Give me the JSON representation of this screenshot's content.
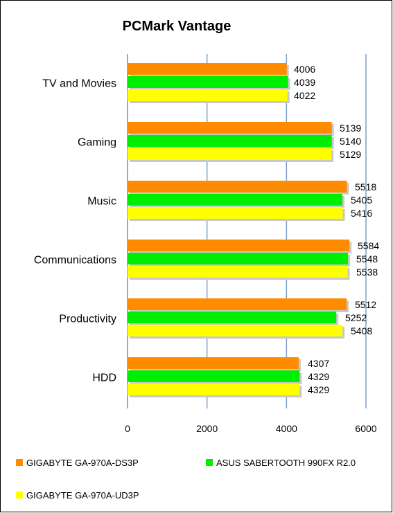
{
  "chart_data": {
    "type": "bar",
    "orientation": "horizontal",
    "title": "PCMark Vantage",
    "categories": [
      "TV and Movies",
      "Gaming",
      "Music",
      "Communications",
      "Productivity",
      "HDD"
    ],
    "series": [
      {
        "name": "GIGABYTE GA-970A-DS3P",
        "color": "#FF8C00",
        "values": [
          4006,
          5139,
          5518,
          5584,
          5512,
          4307
        ]
      },
      {
        "name": "ASUS SABERTOOTH 990FX R2.0",
        "color": "#00EE00",
        "values": [
          4039,
          5140,
          5405,
          5548,
          5252,
          4329
        ]
      },
      {
        "name": "GIGABYTE GA-970A-UD3P",
        "color": "#FFFF00",
        "values": [
          4022,
          5129,
          5416,
          5538,
          5408,
          4329
        ]
      }
    ],
    "xlim": [
      0,
      6000
    ],
    "xticks": [
      "0",
      "2000",
      "4000",
      "6000"
    ],
    "grid": true,
    "legend_position": "bottom"
  }
}
